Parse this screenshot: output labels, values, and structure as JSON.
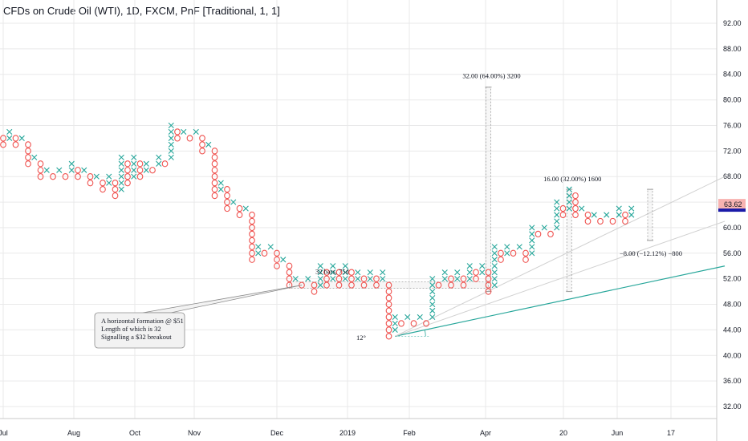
{
  "title": "CFDs on Crude Oil (WTI), 1D, FXCM, PnF [Traditional, 1, 1]",
  "colors": {
    "x_up": "#26a69a",
    "o_down": "#ef5350",
    "grid": "#e9e9ea",
    "axis_text": "#131722",
    "trendline_primary": "#26a69a",
    "trendline_secondary": "#d0d0d0",
    "price_badge_bg": "#f7b3b1",
    "price_badge_marker": "#1a1aa8"
  },
  "price_axis": {
    "ticks": [
      "92.00",
      "88.00",
      "84.00",
      "80.00",
      "76.00",
      "72.00",
      "68.00",
      "64.00",
      "60.00",
      "56.00",
      "52.00",
      "48.00",
      "44.00",
      "40.00",
      "36.00",
      "32.00"
    ],
    "current_price": "63.62"
  },
  "time_axis": {
    "labels": [
      "Jul",
      "Aug",
      "Oct",
      "Nov",
      "Dec",
      "2019",
      "Feb",
      "Apr",
      "20",
      "Jun",
      "17"
    ]
  },
  "annotations": {
    "range1": "32.00 (64.00%) 3200",
    "range2": "16.00 (32.00%) 1600",
    "range3": "−8.00 (−12.12%) −800",
    "bars": "32 bars, 75d",
    "angle": "12°",
    "callout_lines": [
      "A horizontal formation @ $51",
      "Length of which is 32",
      "Signalling a $32 breakout"
    ]
  },
  "chart_data": {
    "type": "point-and-figure",
    "box_size": 1,
    "reversal": 1,
    "ylim": [
      30,
      95
    ],
    "columns": [
      {
        "dir": "O",
        "from": 74,
        "to": 73
      },
      {
        "dir": "X",
        "from": 74,
        "to": 75
      },
      {
        "dir": "O",
        "from": 74,
        "to": 73
      },
      {
        "dir": "X",
        "from": 74,
        "to": 74
      },
      {
        "dir": "O",
        "from": 73,
        "to": 70
      },
      {
        "dir": "X",
        "from": 71,
        "to": 71
      },
      {
        "dir": "O",
        "from": 70,
        "to": 68
      },
      {
        "dir": "X",
        "from": 69,
        "to": 69
      },
      {
        "dir": "O",
        "from": 68,
        "to": 68
      },
      {
        "dir": "X",
        "from": 69,
        "to": 69
      },
      {
        "dir": "O",
        "from": 68,
        "to": 68
      },
      {
        "dir": "X",
        "from": 69,
        "to": 70
      },
      {
        "dir": "O",
        "from": 69,
        "to": 68
      },
      {
        "dir": "X",
        "from": 69,
        "to": 69
      },
      {
        "dir": "O",
        "from": 68,
        "to": 67
      },
      {
        "dir": "X",
        "from": 68,
        "to": 68
      },
      {
        "dir": "O",
        "from": 67,
        "to": 66
      },
      {
        "dir": "X",
        "from": 67,
        "to": 68
      },
      {
        "dir": "O",
        "from": 67,
        "to": 65
      },
      {
        "dir": "X",
        "from": 66,
        "to": 71
      },
      {
        "dir": "O",
        "from": 70,
        "to": 67
      },
      {
        "dir": "X",
        "from": 68,
        "to": 71
      },
      {
        "dir": "O",
        "from": 70,
        "to": 68
      },
      {
        "dir": "X",
        "from": 69,
        "to": 70
      },
      {
        "dir": "O",
        "from": 69,
        "to": 69
      },
      {
        "dir": "X",
        "from": 70,
        "to": 71
      },
      {
        "dir": "O",
        "from": 70,
        "to": 70
      },
      {
        "dir": "X",
        "from": 71,
        "to": 76
      },
      {
        "dir": "O",
        "from": 75,
        "to": 74
      },
      {
        "dir": "X",
        "from": 75,
        "to": 75
      },
      {
        "dir": "O",
        "from": 74,
        "to": 74
      },
      {
        "dir": "X",
        "from": 75,
        "to": 75
      },
      {
        "dir": "O",
        "from": 74,
        "to": 72
      },
      {
        "dir": "X",
        "from": 73,
        "to": 73
      },
      {
        "dir": "O",
        "from": 72,
        "to": 65
      },
      {
        "dir": "X",
        "from": 66,
        "to": 67
      },
      {
        "dir": "O",
        "from": 66,
        "to": 63
      },
      {
        "dir": "X",
        "from": 64,
        "to": 64
      },
      {
        "dir": "O",
        "from": 63,
        "to": 62
      },
      {
        "dir": "X",
        "from": 63,
        "to": 63
      },
      {
        "dir": "O",
        "from": 62,
        "to": 55
      },
      {
        "dir": "X",
        "from": 56,
        "to": 57
      },
      {
        "dir": "O",
        "from": 56,
        "to": 56
      },
      {
        "dir": "X",
        "from": 57,
        "to": 57
      },
      {
        "dir": "O",
        "from": 56,
        "to": 54
      },
      {
        "dir": "X",
        "from": 55,
        "to": 55
      },
      {
        "dir": "O",
        "from": 54,
        "to": 51
      },
      {
        "dir": "X",
        "from": 52,
        "to": 52
      },
      {
        "dir": "O",
        "from": 51,
        "to": 51
      },
      {
        "dir": "X",
        "from": 52,
        "to": 52
      },
      {
        "dir": "O",
        "from": 51,
        "to": 50
      },
      {
        "dir": "X",
        "from": 51,
        "to": 54
      },
      {
        "dir": "O",
        "from": 53,
        "to": 51
      },
      {
        "dir": "X",
        "from": 52,
        "to": 54
      },
      {
        "dir": "O",
        "from": 53,
        "to": 51
      },
      {
        "dir": "X",
        "from": 52,
        "to": 54
      },
      {
        "dir": "O",
        "from": 53,
        "to": 51
      },
      {
        "dir": "X",
        "from": 52,
        "to": 53
      },
      {
        "dir": "O",
        "from": 52,
        "to": 51
      },
      {
        "dir": "X",
        "from": 52,
        "to": 53
      },
      {
        "dir": "O",
        "from": 52,
        "to": 51
      },
      {
        "dir": "X",
        "from": 52,
        "to": 53
      },
      {
        "dir": "O",
        "from": 51,
        "to": 43
      },
      {
        "dir": "X",
        "from": 44,
        "to": 46
      },
      {
        "dir": "O",
        "from": 45,
        "to": 45
      },
      {
        "dir": "X",
        "from": 46,
        "to": 46
      },
      {
        "dir": "O",
        "from": 45,
        "to": 45
      },
      {
        "dir": "X",
        "from": 46,
        "to": 46
      },
      {
        "dir": "O",
        "from": 45,
        "to": 45
      },
      {
        "dir": "X",
        "from": 46,
        "to": 52
      },
      {
        "dir": "O",
        "from": 51,
        "to": 51
      },
      {
        "dir": "X",
        "from": 52,
        "to": 53
      },
      {
        "dir": "O",
        "from": 52,
        "to": 51
      },
      {
        "dir": "X",
        "from": 52,
        "to": 53
      },
      {
        "dir": "O",
        "from": 52,
        "to": 51
      },
      {
        "dir": "X",
        "from": 52,
        "to": 54
      },
      {
        "dir": "O",
        "from": 53,
        "to": 52
      },
      {
        "dir": "X",
        "from": 53,
        "to": 54
      },
      {
        "dir": "O",
        "from": 53,
        "to": 50
      },
      {
        "dir": "X",
        "from": 51,
        "to": 57
      },
      {
        "dir": "O",
        "from": 56,
        "to": 55
      },
      {
        "dir": "X",
        "from": 56,
        "to": 57
      },
      {
        "dir": "O",
        "from": 56,
        "to": 56
      },
      {
        "dir": "X",
        "from": 57,
        "to": 57
      },
      {
        "dir": "O",
        "from": 56,
        "to": 55
      },
      {
        "dir": "X",
        "from": 56,
        "to": 60
      },
      {
        "dir": "O",
        "from": 59,
        "to": 59
      },
      {
        "dir": "X",
        "from": 60,
        "to": 60
      },
      {
        "dir": "O",
        "from": 59,
        "to": 59
      },
      {
        "dir": "X",
        "from": 60,
        "to": 64
      },
      {
        "dir": "O",
        "from": 63,
        "to": 62
      },
      {
        "dir": "X",
        "from": 63,
        "to": 66
      },
      {
        "dir": "O",
        "from": 65,
        "to": 62
      },
      {
        "dir": "X",
        "from": 63,
        "to": 63
      },
      {
        "dir": "O",
        "from": 62,
        "to": 61
      },
      {
        "dir": "X",
        "from": 62,
        "to": 62
      },
      {
        "dir": "O",
        "from": 61,
        "to": 61
      },
      {
        "dir": "X",
        "from": 62,
        "to": 62
      },
      {
        "dir": "O",
        "from": 61,
        "to": 61
      },
      {
        "dir": "X",
        "from": 62,
        "to": 63
      },
      {
        "dir": "O",
        "from": 62,
        "to": 61
      },
      {
        "dir": "X",
        "from": 62,
        "to": 63
      }
    ],
    "trendlines": [
      {
        "name": "support",
        "from": {
          "col": 63,
          "price": 43
        },
        "to": {
          "col": 116,
          "price": 54
        }
      },
      {
        "name": "fan-1",
        "from": {
          "col": 63,
          "price": 43
        },
        "to": {
          "col": 116,
          "price": 68
        }
      },
      {
        "name": "fan-2",
        "from": {
          "col": 63,
          "price": 43
        },
        "to": {
          "col": 116,
          "price": 61
        }
      }
    ],
    "horizontal_formation": {
      "price": 51,
      "from_col": 46,
      "to_col": 78
    },
    "range_measures": [
      {
        "col": 78,
        "from": 50,
        "to": 82
      },
      {
        "col": 91,
        "from": 50,
        "to": 66
      },
      {
        "col": 104,
        "from": 66,
        "to": 58
      }
    ]
  }
}
